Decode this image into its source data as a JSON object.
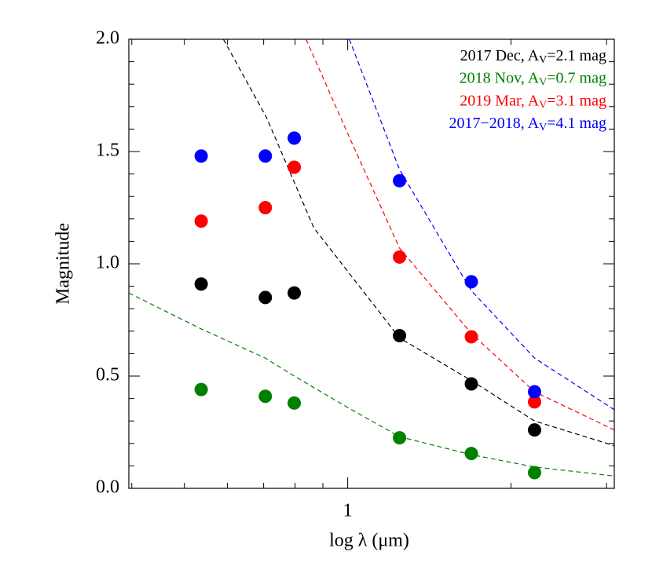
{
  "chart_data": {
    "type": "scatter",
    "xlabel": "log λ (μm)",
    "ylabel": "Magnitude",
    "xscale": "log",
    "xlim": [
      0.395,
      3.1
    ],
    "ylim": [
      0,
      2.0
    ],
    "xticks": [
      1
    ],
    "xminorticks": [
      0.4,
      0.5,
      0.6,
      0.7,
      0.8,
      0.9,
      2,
      3
    ],
    "yticks": [
      {
        "value": 0,
        "label": "0.0"
      },
      0.5,
      {
        "value": 1,
        "label": "1.0"
      },
      1.5,
      {
        "value": 2,
        "label": "2.0"
      }
    ],
    "yminorticks": [
      0.1,
      0.2,
      0.3,
      0.4,
      0.6,
      0.7,
      0.8,
      0.9,
      1.1,
      1.2,
      1.3,
      1.4,
      1.6,
      1.7,
      1.8,
      1.9
    ],
    "legend_position": "upper right",
    "series": [
      {
        "name": "2017 Dec, A",
        "name_subscript": "V",
        "name_suffix": "=2.1 mag",
        "color": "#000000",
        "x": [
          0.537,
          0.705,
          0.797,
          1.246,
          1.69,
          2.21
        ],
        "values": [
          0.91,
          0.85,
          0.87,
          0.68,
          0.465,
          0.26
        ],
        "model": {
          "x": [
            0.59,
            0.709,
            0.866,
            1.246,
            1.69,
            2.21,
            3.1
          ],
          "y": [
            2.0,
            1.65,
            1.16,
            0.67,
            0.48,
            0.3,
            0.19
          ]
        }
      },
      {
        "name": "2018 Nov, A",
        "name_subscript": "V",
        "name_suffix": "=0.7 mag",
        "color": "#008000",
        "x": [
          0.537,
          0.705,
          0.797,
          1.246,
          1.69,
          2.21
        ],
        "values": [
          0.44,
          0.41,
          0.38,
          0.225,
          0.155,
          0.07
        ],
        "model": {
          "x": [
            0.395,
            0.537,
            0.705,
            0.797,
            1.0,
            1.246,
            1.69,
            2.21,
            3.1
          ],
          "y": [
            0.87,
            0.71,
            0.58,
            0.5,
            0.36,
            0.23,
            0.15,
            0.095,
            0.055
          ]
        }
      },
      {
        "name": "2019 Mar, A",
        "name_subscript": "V",
        "name_suffix": "=3.1 mag",
        "color": "#ff0000",
        "x": [
          0.537,
          0.705,
          0.797,
          1.246,
          1.69,
          2.21
        ],
        "values": [
          1.19,
          1.25,
          1.43,
          1.03,
          0.675,
          0.385
        ],
        "model": {
          "x": [
            0.838,
            1.0,
            1.246,
            1.69,
            2.21,
            3.1
          ],
          "y": [
            2.0,
            1.58,
            1.07,
            0.69,
            0.43,
            0.26
          ]
        }
      },
      {
        "name": "2017−2018, A",
        "name_subscript": "V",
        "name_suffix": "=4.1 mag",
        "color": "#0000ff",
        "x": [
          0.537,
          0.705,
          0.797,
          1.246,
          1.69,
          2.21
        ],
        "values": [
          1.48,
          1.48,
          1.56,
          1.37,
          0.92,
          0.43
        ],
        "model": {
          "x": [
            1.007,
            1.246,
            1.69,
            2.21,
            3.1
          ],
          "y": [
            2.0,
            1.42,
            0.88,
            0.58,
            0.35
          ]
        }
      }
    ]
  }
}
